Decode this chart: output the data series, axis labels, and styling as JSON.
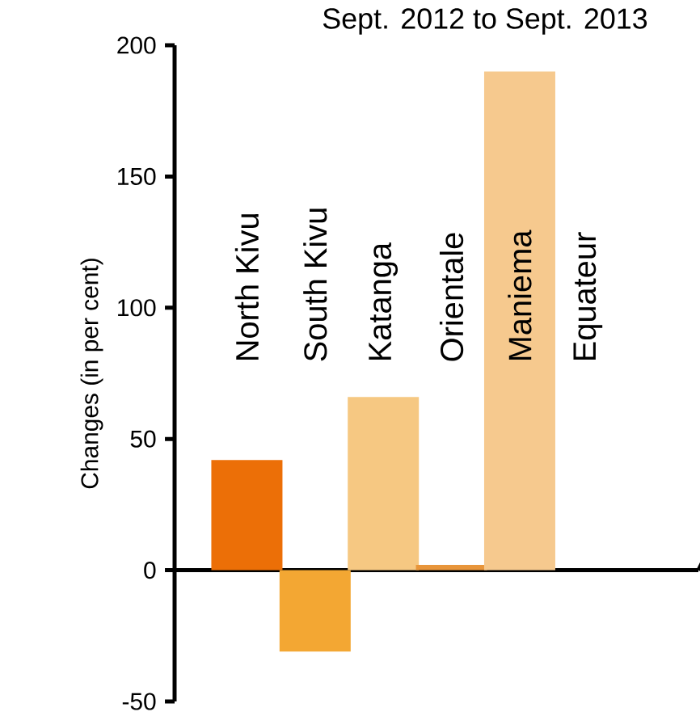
{
  "chart_data": {
    "type": "bar",
    "title": "Sept. 2012 to Sept. 2013",
    "ylabel": "Changes (in per cent)",
    "categories": [
      "North Kivu",
      "South Kivu",
      "Katanga",
      "Orientale",
      "Maniema",
      "Equateur"
    ],
    "values": [
      42,
      -31,
      66,
      2,
      190,
      null
    ],
    "colors": [
      "#ec6f07",
      "#f3a733",
      "#f6c882",
      "#e8953a",
      "#f6c98e",
      "#f6c98e"
    ],
    "ylim": [
      -50,
      200
    ],
    "yticks": [
      -50,
      0,
      50,
      100,
      150,
      200
    ]
  }
}
